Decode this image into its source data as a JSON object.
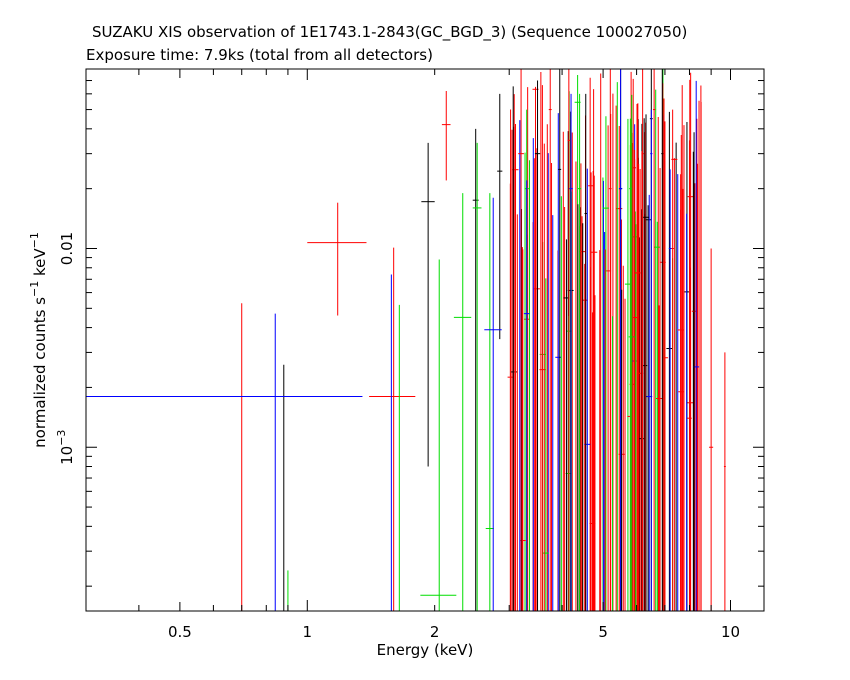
{
  "chart_data": {
    "type": "scatter",
    "title": "SUZAKU XIS observation of 1E1743.1-2843(GC_BGD_3) (Sequence 100027050)",
    "subtitle": "Exposure time: 7.9ks (total from all detectors)",
    "xlabel": "Energy (keV)",
    "ylabel": "normalized counts s^-1 keV^-1",
    "xscale": "log",
    "yscale": "log",
    "xlim": [
      0.3,
      12
    ],
    "ylim": [
      0.00015,
      0.08
    ],
    "x_ticks": [
      {
        "value": 0.5,
        "label": "0.5"
      },
      {
        "value": 1,
        "label": "1"
      },
      {
        "value": 2,
        "label": "2"
      },
      {
        "value": 5,
        "label": "5"
      },
      {
        "value": 10,
        "label": "10"
      }
    ],
    "y_ticks": [
      {
        "value": 0.001,
        "base": "10",
        "exp": "−3"
      },
      {
        "value": 0.01,
        "base": "0.01",
        "exp": ""
      }
    ],
    "colors": {
      "black": "#000000",
      "red": "#ff0000",
      "green": "#00dd00",
      "blue": "#0000ff",
      "frame": "#000000"
    },
    "series": [
      {
        "color": "black",
        "points": [
          {
            "x": 0.88,
            "y": 0.00015,
            "xerr": [
              0.875,
              0.885
            ],
            "yerr": [
              0.00015,
              0.0026
            ]
          },
          {
            "x": 1.93,
            "y": 0.0172,
            "xerr": [
              1.86,
              2.0
            ],
            "yerr": [
              0.0008,
              0.034
            ]
          },
          {
            "x": 2.5,
            "y": 0.0175,
            "xerr": [
              2.46,
              2.54
            ],
            "yerr": [
              0.00015,
              0.04
            ]
          },
          {
            "x": 2.85,
            "y": 0.0245,
            "xerr": [
              2.81,
              2.89
            ],
            "yerr": [
              0.0035,
              0.06
            ]
          },
          {
            "x": 3.5,
            "y": 0.03,
            "xerr": [
              3.45,
              3.55
            ],
            "yerr": [
              0.00015,
              0.07
            ]
          },
          {
            "x": 3.95,
            "y": 0.025,
            "xerr": [
              3.92,
              3.98
            ],
            "yerr": [
              0.00015,
              0.08
            ]
          },
          {
            "x": 4.55,
            "y": 0.015,
            "xerr": [
              4.52,
              4.58
            ],
            "yerr": [
              0.00015,
              0.06
            ]
          },
          {
            "x": 5.5,
            "y": 0.02,
            "xerr": [
              5.46,
              5.54
            ],
            "yerr": [
              0.00015,
              0.08
            ]
          },
          {
            "x": 6.5,
            "y": 0.045,
            "xerr": [
              6.45,
              6.55
            ],
            "yerr": [
              0.00015,
              0.08
            ]
          },
          {
            "x": 6.9,
            "y": 0.03,
            "xerr": [
              6.86,
              6.94
            ],
            "yerr": [
              0.00015,
              0.08
            ]
          }
        ]
      },
      {
        "color": "red",
        "points": [
          {
            "x": 0.7,
            "y": 0.00015,
            "xerr": [
              0.695,
              0.705
            ],
            "yerr": [
              0.00015,
              0.0053
            ]
          },
          {
            "x": 1.18,
            "y": 0.0107,
            "xerr": [
              1.0,
              1.38
            ],
            "yerr": [
              0.0046,
              0.017
            ]
          },
          {
            "x": 1.6,
            "y": 0.0018,
            "xerr": [
              1.4,
              1.8
            ],
            "yerr": [
              0.00015,
              0.0101
            ]
          },
          {
            "x": 2.13,
            "y": 0.042,
            "xerr": [
              2.08,
              2.18
            ],
            "yerr": [
              0.022,
              0.062
            ]
          },
          {
            "x": 3.2,
            "y": 0.03,
            "xerr": [
              3.15,
              3.25
            ],
            "yerr": [
              0.00015,
              0.08
            ]
          },
          {
            "x": 3.75,
            "y": 0.05,
            "xerr": [
              3.72,
              3.78
            ],
            "yerr": [
              0.00015,
              0.08
            ]
          },
          {
            "x": 4.15,
            "y": 0.035,
            "xerr": [
              4.12,
              4.18
            ],
            "yerr": [
              0.00015,
              0.08
            ]
          },
          {
            "x": 5.2,
            "y": 0.02,
            "xerr": [
              5.16,
              5.24
            ],
            "yerr": [
              0.00015,
              0.08
            ]
          },
          {
            "x": 6.2,
            "y": 0.03,
            "xerr": [
              6.16,
              6.24
            ],
            "yerr": [
              0.00015,
              0.08
            ]
          },
          {
            "x": 6.6,
            "y": 0.05,
            "xerr": [
              6.56,
              6.64
            ],
            "yerr": [
              0.00015,
              0.08
            ]
          },
          {
            "x": 7.3,
            "y": 0.01,
            "xerr": [
              7.25,
              7.35
            ],
            "yerr": [
              0.00015,
              0.05
            ]
          },
          {
            "x": 8.0,
            "y": 0.0014,
            "xerr": [
              7.9,
              8.1
            ],
            "yerr": [
              0.00015,
              0.035
            ]
          },
          {
            "x": 9.0,
            "y": 0.001,
            "xerr": [
              8.9,
              9.1
            ],
            "yerr": [
              0.00015,
              0.01
            ]
          },
          {
            "x": 9.7,
            "y": 0.0008,
            "xerr": [
              9.65,
              9.75
            ],
            "yerr": [
              0.00015,
              0.003
            ]
          }
        ]
      },
      {
        "color": "green",
        "points": [
          {
            "x": 0.9,
            "y": 0.00015,
            "xerr": [
              0.895,
              0.905
            ],
            "yerr": [
              0.00015,
              0.00024
            ]
          },
          {
            "x": 1.65,
            "y": 0.00015,
            "xerr": [
              1.62,
              1.68
            ],
            "yerr": [
              0.00015,
              0.0052
            ]
          },
          {
            "x": 2.05,
            "y": 0.00018,
            "xerr": [
              1.85,
              2.25
            ],
            "yerr": [
              0.00015,
              0.0088
            ]
          },
          {
            "x": 2.33,
            "y": 0.0045,
            "xerr": [
              2.22,
              2.44
            ],
            "yerr": [
              0.00015,
              0.019
            ]
          },
          {
            "x": 2.52,
            "y": 0.016,
            "xerr": [
              2.46,
              2.58
            ],
            "yerr": [
              0.00015,
              0.034
            ]
          },
          {
            "x": 2.7,
            "y": 0.00039,
            "xerr": [
              2.64,
              2.76
            ],
            "yerr": [
              0.00015,
              0.019
            ]
          },
          {
            "x": 3.3,
            "y": 0.02,
            "xerr": [
              3.26,
              3.34
            ],
            "yerr": [
              0.00015,
              0.05
            ]
          },
          {
            "x": 4.4,
            "y": 0.02,
            "xerr": [
              4.36,
              4.44
            ],
            "yerr": [
              0.00015,
              0.06
            ]
          },
          {
            "x": 5.8,
            "y": 0.02,
            "xerr": [
              5.76,
              5.84
            ],
            "yerr": [
              0.00015,
              0.045
            ]
          }
        ]
      },
      {
        "color": "blue",
        "points": [
          {
            "x": 0.6,
            "y": 0.0018,
            "xerr": [
              0.3,
              1.35
            ],
            "yerr": [
              0.0018,
              0.0018
            ]
          },
          {
            "x": 0.84,
            "y": 0.00015,
            "xerr": [
              0.835,
              0.845
            ],
            "yerr": [
              0.00015,
              0.0047
            ]
          },
          {
            "x": 1.58,
            "y": 0.00015,
            "xerr": [
              1.4,
              1.75
            ],
            "yerr": [
              0.00015,
              0.0074
            ]
          },
          {
            "x": 2.75,
            "y": 0.0039,
            "xerr": [
              2.62,
              2.88
            ],
            "yerr": [
              0.00015,
              0.018
            ]
          },
          {
            "x": 3.3,
            "y": 0.0047,
            "xerr": [
              3.25,
              3.35
            ],
            "yerr": [
              0.00015,
              0.022
            ]
          },
          {
            "x": 4.2,
            "y": 0.02,
            "xerr": [
              4.16,
              4.24
            ],
            "yerr": [
              0.00015,
              0.06
            ]
          },
          {
            "x": 5.5,
            "y": 0.02,
            "xerr": [
              5.45,
              5.55
            ],
            "yerr": [
              0.00015,
              0.08
            ]
          },
          {
            "x": 6.5,
            "y": 0.03,
            "xerr": [
              6.46,
              6.54
            ],
            "yerr": [
              0.00015,
              0.05
            ]
          },
          {
            "x": 7.2,
            "y": 0.01,
            "xerr": [
              7.15,
              7.25
            ],
            "yerr": [
              0.00015,
              0.025
            ]
          }
        ]
      }
    ],
    "bg_lines": {
      "count": 150,
      "x_range": [
        3.0,
        8.6
      ],
      "y_top_range": [
        0.004,
        0.08
      ],
      "weights": {
        "red": 0.62,
        "black": 0.16,
        "green": 0.12,
        "blue": 0.1
      }
    }
  }
}
